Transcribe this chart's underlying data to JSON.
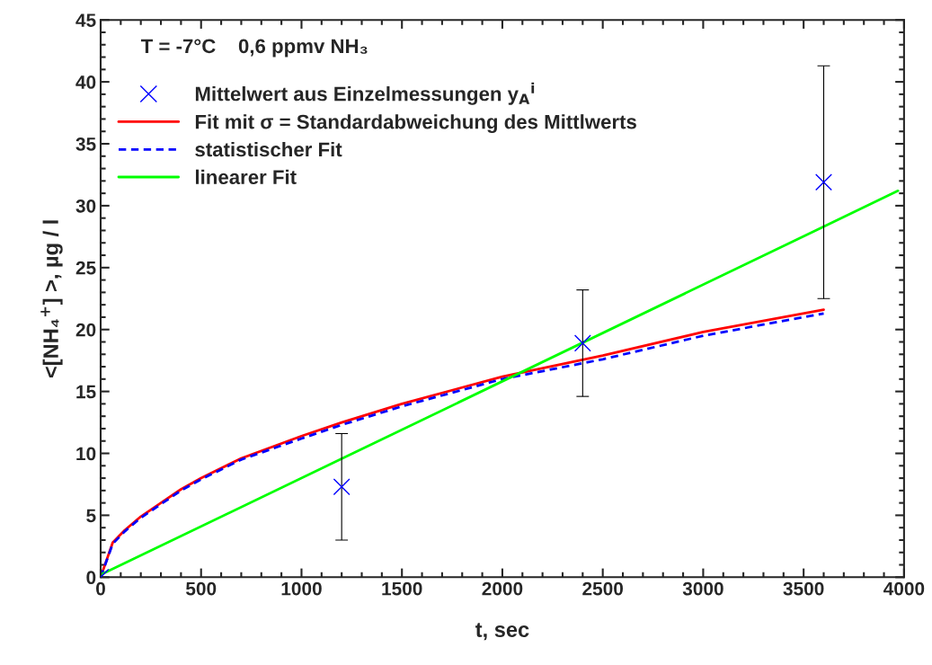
{
  "chart_data": {
    "type": "line",
    "xlabel": "t, sec",
    "ylabel": "<[NH₄$^{+}$] >, µg / l",
    "xlim": [
      0,
      4000
    ],
    "xticks": [
      0,
      500,
      1000,
      1500,
      2000,
      2500,
      3000,
      3500,
      4000
    ],
    "ylim": [
      0,
      45
    ],
    "yticks": [
      0,
      5,
      10,
      15,
      20,
      25,
      30,
      35,
      40,
      45
    ],
    "annotations": [
      "T = -7°C    0,6 ppmv NH₃"
    ],
    "legend": "top left",
    "grid": false,
    "series": [
      {
        "name": "Mittelwert aus Einzelmessungen y$_{A}$$^{i}$",
        "type": "scatter",
        "marker": "cross",
        "color": "#0000ff",
        "x": [
          0,
          1200,
          2400,
          3600
        ],
        "values": [
          0,
          7.3,
          18.9,
          31.9
        ],
        "errors": [
          null,
          [
            3.0,
            11.6
          ],
          [
            14.6,
            23.2
          ],
          [
            22.5,
            41.3
          ]
        ]
      },
      {
        "name": "Fit mit σ = Standardabweichung des Mittlwerts",
        "line_style": "solid",
        "color": "#ff0000",
        "x": [
          0,
          60,
          120,
          200,
          300,
          400,
          500,
          700,
          1000,
          1200,
          1500,
          2000,
          2500,
          3000,
          3600
        ],
        "values": [
          0,
          2.8,
          3.8,
          4.9,
          6.0,
          7.1,
          8.0,
          9.6,
          11.4,
          12.5,
          14.0,
          16.2,
          17.9,
          19.8,
          21.6
        ]
      },
      {
        "name": "statistischer Fit",
        "line_style": "dashed",
        "color": "#0000ff",
        "x": [
          0,
          60,
          120,
          200,
          300,
          400,
          500,
          700,
          1000,
          1200,
          1500,
          2000,
          2500,
          3000,
          3600
        ],
        "values": [
          0,
          2.7,
          3.7,
          4.8,
          5.9,
          7.0,
          7.9,
          9.5,
          11.2,
          12.3,
          13.8,
          16.0,
          17.6,
          19.5,
          21.3
        ]
      },
      {
        "name": "linearer Fit",
        "line_style": "solid",
        "color": "#00ff00",
        "x": [
          0,
          3970
        ],
        "values": [
          0.2,
          31.2
        ]
      }
    ]
  }
}
